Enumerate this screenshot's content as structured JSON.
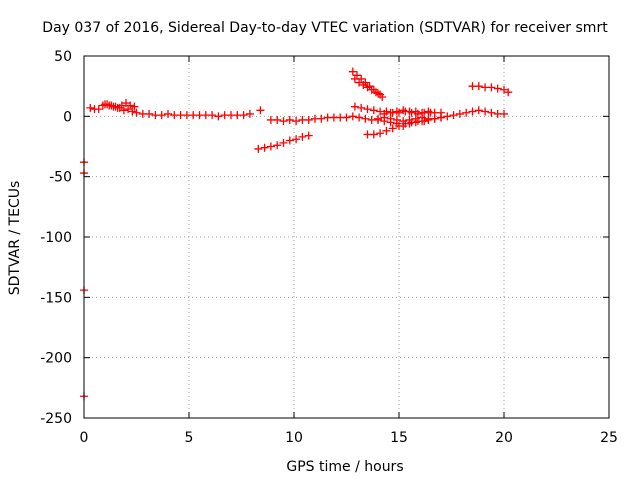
{
  "chart_data": {
    "type": "scatter",
    "title": "Day 037 of 2016, Sidereal Day-to-day VTEC variation (SDTVAR) for receiver smrt",
    "xlabel": "GPS time / hours",
    "ylabel": "SDTVAR / TECUs",
    "xlim": [
      0,
      25
    ],
    "ylim": [
      -250,
      50
    ],
    "xticks": [
      0,
      5,
      10,
      15,
      20,
      25
    ],
    "yticks": [
      -250,
      -200,
      -150,
      -100,
      -50,
      0,
      50
    ],
    "grid": true,
    "marker": "+",
    "color": "#ff0000",
    "series": [
      {
        "x": [
          0.3,
          0.5,
          0.7,
          0.9,
          1.1,
          1.3,
          1.5,
          1.7,
          1.9,
          2.1,
          2.3,
          2.5,
          2.8,
          3.1,
          3.4,
          3.7,
          4.0,
          4.3,
          4.6,
          4.9,
          5.2,
          5.5,
          5.8,
          6.1,
          6.4,
          6.7,
          7.0,
          7.3,
          7.6,
          7.9
        ],
        "y": [
          7,
          6,
          6,
          9,
          10,
          9,
          8,
          7,
          5,
          6,
          4,
          3,
          2,
          2,
          1,
          1,
          2,
          1,
          1,
          1,
          1,
          1,
          1,
          1,
          0,
          1,
          1,
          1,
          1,
          2
        ]
      },
      {
        "x": [
          1.0,
          1.2,
          1.4,
          1.6,
          1.8,
          2.0,
          2.2,
          2.4
        ],
        "y": [
          10,
          9,
          8,
          7,
          9,
          11,
          9,
          8
        ]
      },
      {
        "x": [
          8.4
        ],
        "y": [
          5
        ]
      },
      {
        "x": [
          8.3,
          8.6,
          8.9,
          9.2,
          9.5,
          9.8,
          10.1,
          10.4,
          10.7
        ],
        "y": [
          -27,
          -26,
          -25,
          -24,
          -22,
          -20,
          -19,
          -17,
          -16
        ]
      },
      {
        "x": [
          8.9,
          9.2,
          9.5,
          9.8,
          10.1,
          10.4,
          10.7,
          11.0,
          11.3,
          11.6,
          11.9,
          12.2,
          12.5,
          12.8,
          13.1,
          13.4,
          13.7,
          14.0,
          14.3,
          14.6,
          14.9,
          15.2,
          15.5,
          15.8,
          16.1,
          16.4,
          16.7,
          17.0
        ],
        "y": [
          -3,
          -3,
          -4,
          -3,
          -4,
          -3,
          -3,
          -2,
          -2,
          -1,
          -1,
          -1,
          -1,
          0,
          -1,
          -2,
          -3,
          -2,
          -1,
          -2,
          -3,
          -4,
          -3,
          -2,
          -1,
          -2,
          -2,
          -1
        ]
      },
      {
        "x": [
          12.8,
          13.0,
          13.2,
          13.4,
          13.6,
          13.8,
          14.0,
          14.2
        ],
        "y": [
          37,
          34,
          31,
          28,
          25,
          22,
          19,
          16
        ]
      },
      {
        "x": [
          12.9,
          13.1,
          13.3,
          13.5,
          13.7,
          13.9,
          14.1
        ],
        "y": [
          31,
          28,
          26,
          24,
          22,
          20,
          18
        ]
      },
      {
        "x": [
          12.9,
          13.2,
          13.5,
          13.8,
          14.1,
          14.4,
          14.7,
          15.0,
          15.3,
          15.6,
          15.9,
          16.2,
          16.5
        ],
        "y": [
          8,
          7,
          6,
          5,
          4,
          4,
          3,
          3,
          4,
          3,
          2,
          3,
          3
        ]
      },
      {
        "x": [
          13.5,
          13.8,
          14.1,
          14.4,
          14.7,
          15.0,
          15.3,
          15.6,
          15.9,
          16.2
        ],
        "y": [
          -15,
          -15,
          -14,
          -12,
          -10,
          -8,
          -6,
          -5,
          -4,
          -4
        ]
      },
      {
        "x": [
          14.0,
          14.3,
          14.6,
          14.9,
          15.2,
          15.5,
          15.8,
          16.1,
          16.4,
          16.7,
          17.0,
          17.3,
          17.6,
          17.9,
          18.2,
          18.5,
          18.8,
          19.1,
          19.4,
          19.7,
          20.0
        ],
        "y": [
          -3,
          -4,
          -5,
          -6,
          -8,
          -6,
          -5,
          -4,
          -3,
          -2,
          -1,
          0,
          1,
          2,
          3,
          4,
          5,
          4,
          3,
          2,
          2
        ]
      },
      {
        "x": [
          14.3,
          14.6,
          14.9,
          15.2,
          15.5,
          15.8,
          16.1,
          16.4,
          16.7,
          17.0
        ],
        "y": [
          2,
          3,
          4,
          5,
          4,
          4,
          3,
          4,
          3,
          3
        ]
      },
      {
        "x": [
          18.5,
          18.8,
          19.1,
          19.4,
          19.7,
          20.0,
          20.2
        ],
        "y": [
          25,
          25,
          24,
          24,
          23,
          22,
          20
        ]
      },
      {
        "x": [
          0,
          0,
          0,
          0
        ],
        "y": [
          -38,
          -47,
          -144,
          -232
        ]
      }
    ]
  }
}
